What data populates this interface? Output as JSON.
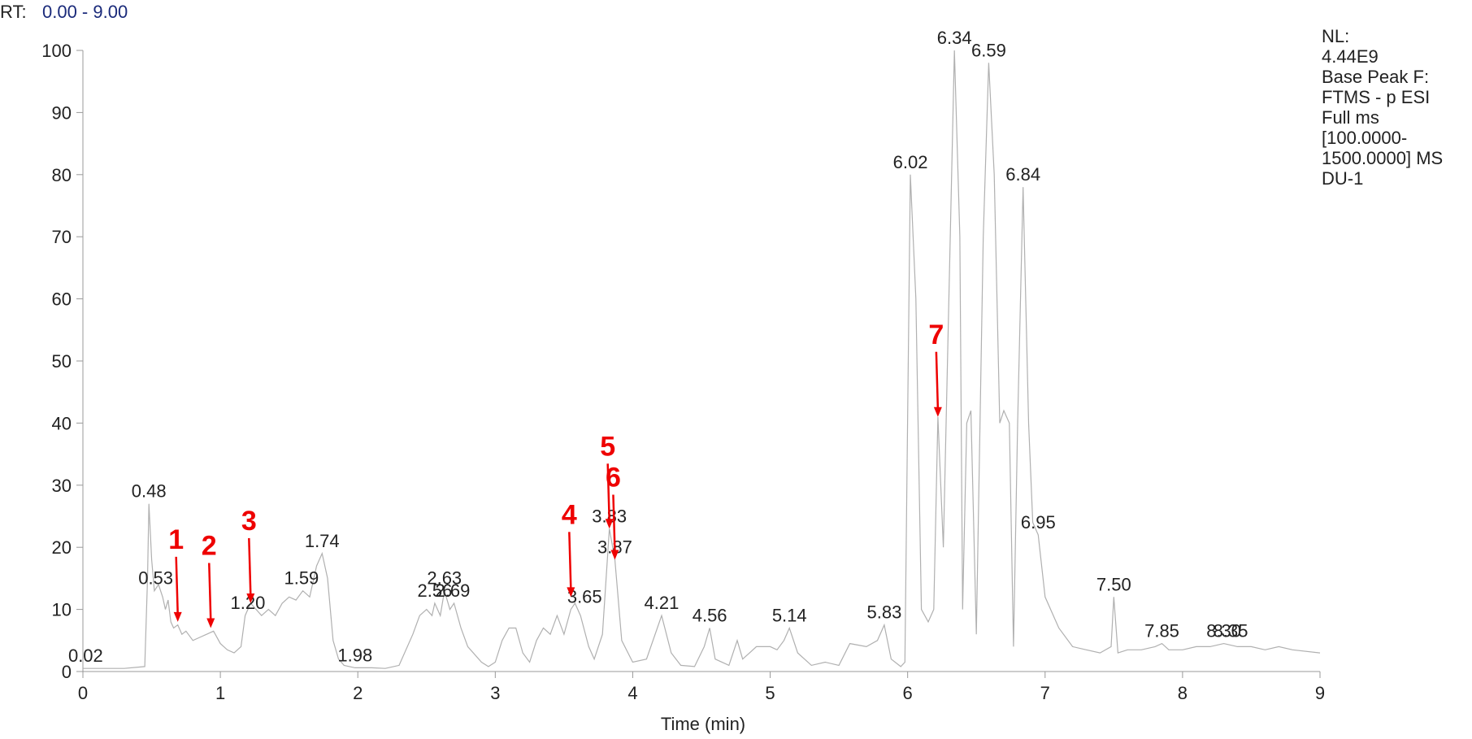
{
  "chart_data": {
    "type": "line",
    "header": {
      "label": "RT:",
      "range": "0.00 - 9.00"
    },
    "info": [
      "NL:",
      "4.44E9",
      "Base Peak F:",
      "FTMS - p ESI",
      "Full ms",
      "[100.0000-",
      "1500.0000]  MS",
      "DU-1"
    ],
    "x_label": "Time (min)",
    "xlim": [
      0,
      9
    ],
    "xticks": [
      0,
      1,
      2,
      3,
      4,
      5,
      6,
      7,
      8,
      9
    ],
    "ylim": [
      0,
      100
    ],
    "yticks": [
      0,
      10,
      20,
      30,
      40,
      50,
      60,
      70,
      80,
      90,
      100
    ],
    "x": [
      0,
      0.3,
      0.45,
      0.47,
      0.48,
      0.5,
      0.52,
      0.55,
      0.58,
      0.6,
      0.62,
      0.64,
      0.66,
      0.69,
      0.72,
      0.75,
      0.8,
      0.85,
      0.9,
      0.95,
      1.0,
      1.05,
      1.1,
      1.15,
      1.18,
      1.22,
      1.26,
      1.3,
      1.35,
      1.4,
      1.45,
      1.5,
      1.55,
      1.6,
      1.65,
      1.7,
      1.74,
      1.78,
      1.82,
      1.86,
      1.9,
      1.98,
      2.1,
      2.2,
      2.3,
      2.4,
      2.45,
      2.5,
      2.54,
      2.56,
      2.6,
      2.63,
      2.67,
      2.7,
      2.75,
      2.8,
      2.9,
      2.95,
      3.0,
      3.05,
      3.1,
      3.15,
      3.2,
      3.25,
      3.3,
      3.35,
      3.4,
      3.45,
      3.5,
      3.55,
      3.58,
      3.62,
      3.68,
      3.72,
      3.78,
      3.83,
      3.87,
      3.92,
      4.0,
      4.1,
      4.21,
      4.28,
      4.35,
      4.45,
      4.52,
      4.56,
      4.6,
      4.7,
      4.76,
      4.8,
      4.85,
      4.9,
      5.0,
      5.05,
      5.1,
      5.14,
      5.2,
      5.3,
      5.4,
      5.5,
      5.58,
      5.7,
      5.78,
      5.83,
      5.88,
      5.95,
      5.98,
      6.02,
      6.06,
      6.1,
      6.15,
      6.19,
      6.22,
      6.26,
      6.3,
      6.34,
      6.38,
      6.4,
      6.43,
      6.46,
      6.5,
      6.55,
      6.59,
      6.63,
      6.67,
      6.7,
      6.74,
      6.77,
      6.8,
      6.84,
      6.88,
      6.91,
      6.95,
      7.0,
      7.1,
      7.2,
      7.3,
      7.4,
      7.48,
      7.5,
      7.53,
      7.6,
      7.7,
      7.8,
      7.85,
      7.9,
      8.0,
      8.1,
      8.2,
      8.3,
      8.4,
      8.5,
      8.6,
      8.7,
      8.8,
      9.0
    ],
    "series": [
      {
        "color": "#b0b0b0",
        "values": [
          0.5,
          0.5,
          0.8,
          15,
          27,
          18,
          13,
          14,
          12,
          10,
          11.5,
          8,
          7,
          7.5,
          6,
          6.5,
          5,
          5.5,
          6,
          6.5,
          4.5,
          3.5,
          3,
          4,
          9,
          11,
          10,
          9,
          10,
          9,
          11,
          12,
          11.5,
          13,
          12,
          17,
          19,
          15,
          5,
          2,
          1,
          0.6,
          0.6,
          0.5,
          1,
          6,
          9,
          10,
          9,
          11,
          9,
          13,
          10,
          11,
          7,
          4,
          1.5,
          0.8,
          1.5,
          5,
          7,
          7,
          3,
          1.5,
          5,
          7,
          6,
          9,
          6,
          10,
          11,
          9,
          4,
          2,
          6,
          23,
          18,
          5,
          1.5,
          2,
          9,
          3,
          1,
          0.8,
          4,
          7,
          2,
          1,
          5,
          2,
          3,
          4,
          4,
          3.5,
          5,
          7,
          3,
          1,
          1.5,
          1,
          4.5,
          4,
          5,
          7.5,
          2,
          0.8,
          1.5,
          80,
          60,
          10,
          8,
          10,
          41,
          20,
          60,
          100,
          70,
          10,
          40,
          42,
          6,
          70,
          98,
          80,
          40,
          42,
          40,
          4,
          40,
          78,
          40,
          24,
          22,
          12,
          7,
          4,
          3.5,
          3,
          4,
          12,
          3,
          3.5,
          3.5,
          4,
          4.5,
          3.5,
          3.5,
          4,
          4,
          4.5,
          4,
          4,
          3.5,
          4,
          3.5,
          3
        ]
      }
    ],
    "peak_labels": [
      {
        "label": "0.02",
        "x": 0.02,
        "y": 0.5
      },
      {
        "label": "0.48",
        "x": 0.48,
        "y": 27
      },
      {
        "label": "0.53",
        "x": 0.53,
        "y": 13
      },
      {
        "label": "1.20",
        "x": 1.2,
        "y": 9
      },
      {
        "label": "1.59",
        "x": 1.59,
        "y": 13
      },
      {
        "label": "1.74",
        "x": 1.74,
        "y": 19
      },
      {
        "label": "1.98",
        "x": 1.98,
        "y": 0.6
      },
      {
        "label": "2.56",
        "x": 2.56,
        "y": 11
      },
      {
        "label": "2.63",
        "x": 2.63,
        "y": 13
      },
      {
        "label": "2.69",
        "x": 2.69,
        "y": 11
      },
      {
        "label": "3.65",
        "x": 3.65,
        "y": 10
      },
      {
        "label": "3.83",
        "x": 3.83,
        "y": 23
      },
      {
        "label": "3.87",
        "x": 3.87,
        "y": 18
      },
      {
        "label": "4.21",
        "x": 4.21,
        "y": 9
      },
      {
        "label": "4.56",
        "x": 4.56,
        "y": 7
      },
      {
        "label": "5.14",
        "x": 5.14,
        "y": 7
      },
      {
        "label": "5.83",
        "x": 5.83,
        "y": 7.5
      },
      {
        "label": "6.02",
        "x": 6.02,
        "y": 80
      },
      {
        "label": "6.34",
        "x": 6.34,
        "y": 100
      },
      {
        "label": "6.59",
        "x": 6.59,
        "y": 98
      },
      {
        "label": "6.84",
        "x": 6.84,
        "y": 78
      },
      {
        "label": "6.95",
        "x": 6.95,
        "y": 22
      },
      {
        "label": "7.50",
        "x": 7.5,
        "y": 12
      },
      {
        "label": "7.85",
        "x": 7.85,
        "y": 4.5
      },
      {
        "label": "8.30",
        "x": 8.3,
        "y": 4.5
      },
      {
        "label": "8.35",
        "x": 8.35,
        "y": 4.5
      }
    ],
    "markers": [
      {
        "label": "1",
        "x": 0.69,
        "y": 8
      },
      {
        "label": "2",
        "x": 0.93,
        "y": 7
      },
      {
        "label": "3",
        "x": 1.22,
        "y": 11
      },
      {
        "label": "4",
        "x": 3.55,
        "y": 12
      },
      {
        "label": "5",
        "x": 3.83,
        "y": 23
      },
      {
        "label": "6",
        "x": 3.87,
        "y": 18
      },
      {
        "label": "7",
        "x": 6.22,
        "y": 41
      }
    ]
  }
}
